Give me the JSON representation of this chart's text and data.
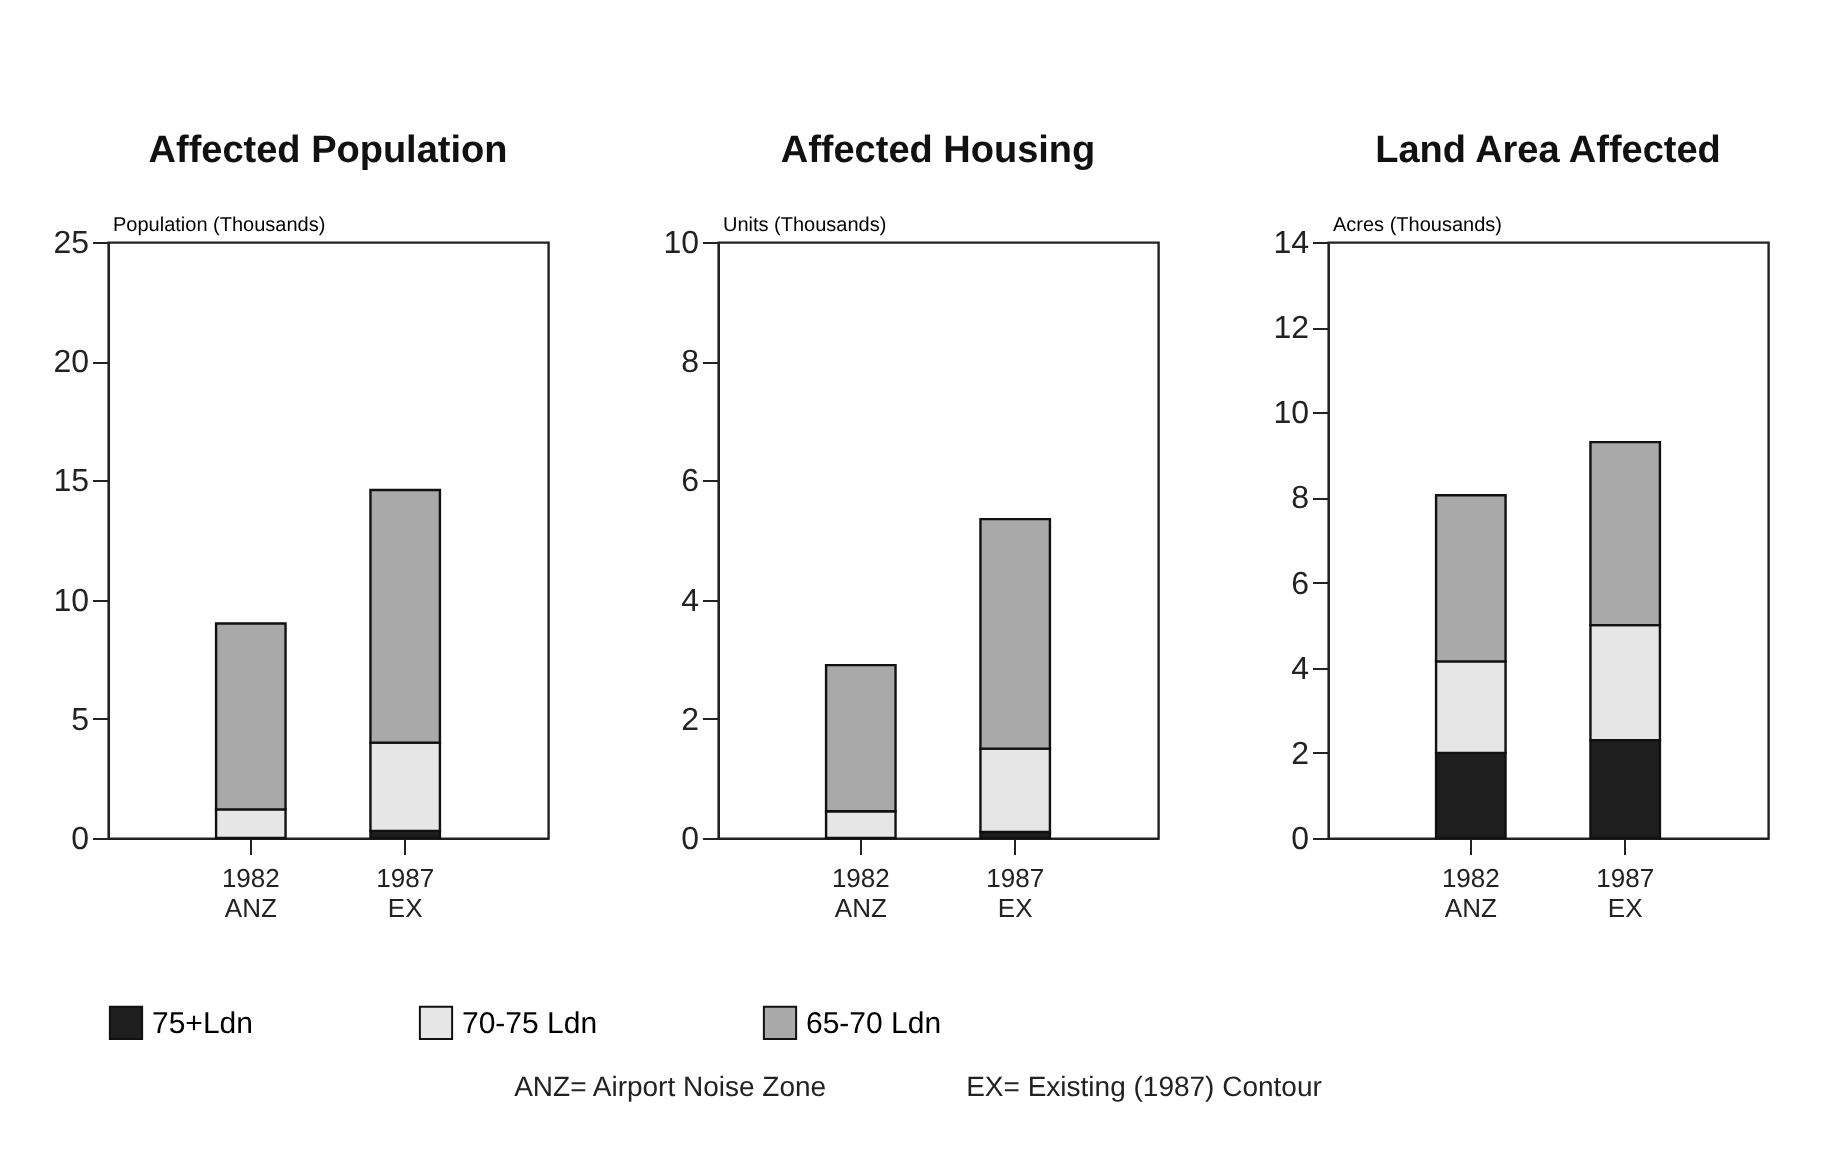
{
  "chart_data": [
    {
      "type": "bar",
      "title": "Affected Population",
      "ylabel": "Population (Thousands)",
      "categories": [
        "1982\nANZ",
        "1987\nEX"
      ],
      "stacked": true,
      "ylim": [
        0,
        25
      ],
      "yticks": [
        0,
        5,
        10,
        15,
        20,
        25
      ],
      "grid": false,
      "legend": "bottom",
      "series": [
        {
          "name": "75+Ldn",
          "color": "#1e1e1e",
          "values": [
            0,
            0.3
          ]
        },
        {
          "name": "70-75 Ldn",
          "color": "#e6e6e6",
          "values": [
            1.2,
            3.7
          ]
        },
        {
          "name": "65-70 Ldn",
          "color": "#a9a9a9",
          "values": [
            7.8,
            10.6
          ]
        }
      ]
    },
    {
      "type": "bar",
      "title": "Affected Housing",
      "ylabel": "Units (Thousands)",
      "categories": [
        "1982\nANZ",
        "1987\nEX"
      ],
      "stacked": true,
      "ylim": [
        0,
        10
      ],
      "yticks": [
        0,
        2,
        4,
        6,
        8,
        10
      ],
      "grid": false,
      "legend": "bottom",
      "series": [
        {
          "name": "75+Ldn",
          "color": "#1e1e1e",
          "values": [
            0,
            0.1
          ]
        },
        {
          "name": "70-75 Ldn",
          "color": "#e6e6e6",
          "values": [
            0.45,
            1.4
          ]
        },
        {
          "name": "65-70 Ldn",
          "color": "#a9a9a9",
          "values": [
            2.45,
            3.85
          ]
        }
      ],
      "annotations": [
        "ANZ= Airport Noise Zone",
        "EX= Existing (1987) Contour"
      ]
    },
    {
      "type": "bar",
      "title": "Land Area Affected",
      "ylabel": "Acres (Thousands)",
      "categories": [
        "1982\nANZ",
        "1987\nEX"
      ],
      "stacked": true,
      "ylim": [
        0,
        14
      ],
      "yticks": [
        0,
        2,
        4,
        6,
        8,
        10,
        12,
        14
      ],
      "grid": false,
      "legend": "bottom",
      "series": [
        {
          "name": "75+Ldn",
          "color": "#1e1e1e",
          "values": [
            2.0,
            2.3
          ]
        },
        {
          "name": "70-75 Ldn",
          "color": "#e6e6e6",
          "values": [
            2.15,
            2.7
          ]
        },
        {
          "name": "65-70 Ldn",
          "color": "#a9a9a9",
          "values": [
            3.9,
            4.3
          ]
        }
      ]
    }
  ]
}
